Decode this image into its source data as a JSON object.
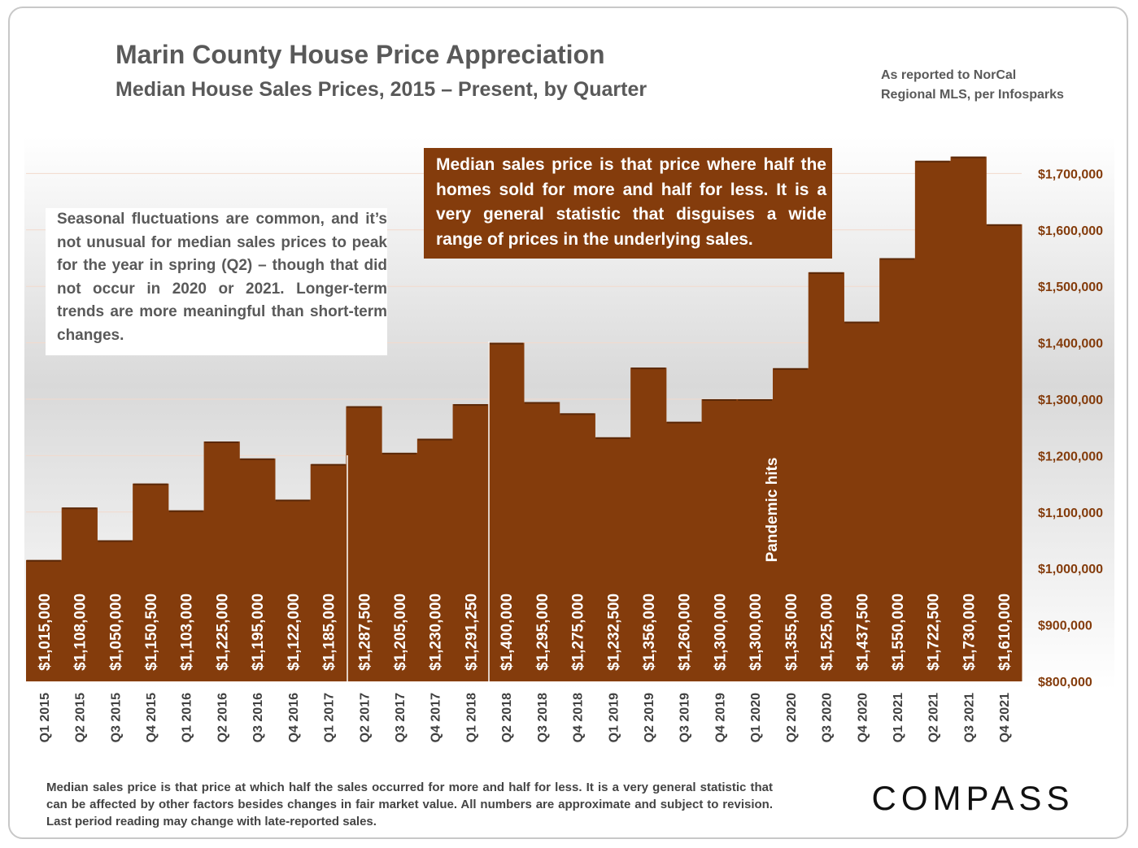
{
  "chart_data": {
    "type": "bar",
    "title": "Marin County House Price Appreciation",
    "subtitle": "Median House Sales Prices, 2015 – Present, by Quarter",
    "source": [
      "As reported to NorCal",
      "Regional MLS, per Infosparks"
    ],
    "annotations": [
      "Seasonal fluctuations are common, and it’s not unusual for median sales prices to peak for the year in spring (Q2) – though that did not occur in 2020 or 2021. Longer-term trends are more meaningful than short-term changes.",
      "Median sales price is that price where half the homes sold for more and half for less. It is a very general statistic that disguises a wide range of prices in the underlying sales.",
      "Pandemic hits"
    ],
    "footnote": "Median sales price is that price at which half the sales occurred for more and half for less. It is a very general statistic that can be affected by other factors besides changes in fair market value. All numbers are approximate and subject to revision. Last period reading may change with late-reported sales.",
    "logo": "COMPASS",
    "categories": [
      "Q1 2015",
      "Q2 2015",
      "Q3 2015",
      "Q4 2015",
      "Q1 2016",
      "Q2 2016",
      "Q3 2016",
      "Q4 2016",
      "Q1 2017",
      "Q2 2017",
      "Q3 2017",
      "Q4 2017",
      "Q1 2018",
      "Q2 2018",
      "Q3 2018",
      "Q4 2018",
      "Q1 2019",
      "Q2 2019",
      "Q3 2019",
      "Q4 2019",
      "Q1 2020",
      "Q2 2020",
      "Q3 2020",
      "Q4 2020",
      "Q1 2021",
      "Q2 2021",
      "Q3 2021",
      "Q4 2021"
    ],
    "values": [
      1015000,
      1108000,
      1050000,
      1150500,
      1103000,
      1225000,
      1195000,
      1122000,
      1185000,
      1287500,
      1205000,
      1230000,
      1291250,
      1400000,
      1295000,
      1275000,
      1232500,
      1356000,
      1260000,
      1300000,
      1300000,
      1355000,
      1525000,
      1437500,
      1550000,
      1722500,
      1730000,
      1610000
    ],
    "value_labels": [
      "$1,015,000",
      "$1,108,000",
      "$1,050,000",
      "$1,150,500",
      "$1,103,000",
      "$1,225,000",
      "$1,195,000",
      "$1,122,000",
      "$1,185,000",
      "$1,287,500",
      "$1,205,000",
      "$1,230,000",
      "$1,291,250",
      "$1,400,000",
      "$1,295,000",
      "$1,275,000",
      "$1,232,500",
      "$1,356,000",
      "$1,260,000",
      "$1,300,000",
      "$1,300,000",
      "$1,355,000",
      "$1,525,000",
      "$1,437,500",
      "$1,550,000",
      "$1,722,500",
      "$1,730,000",
      "$1,610,000"
    ],
    "color": "#843c0c",
    "ylim": [
      800000,
      1800000
    ],
    "yticks": [
      {
        "value": 800000,
        "label": "$800,000"
      },
      {
        "value": 900000,
        "label": "$900,000"
      },
      {
        "value": 1000000,
        "label": "$1,000,000"
      },
      {
        "value": 1100000,
        "label": "$1,100,000"
      },
      {
        "value": 1200000,
        "label": "$1,200,000"
      },
      {
        "value": 1300000,
        "label": "$1,300,000"
      },
      {
        "value": 1400000,
        "label": "$1,400,000"
      },
      {
        "value": 1500000,
        "label": "$1,500,000"
      },
      {
        "value": 1600000,
        "label": "$1,600,000"
      },
      {
        "value": 1700000,
        "label": "$1,700,000"
      }
    ],
    "grid": true
  }
}
